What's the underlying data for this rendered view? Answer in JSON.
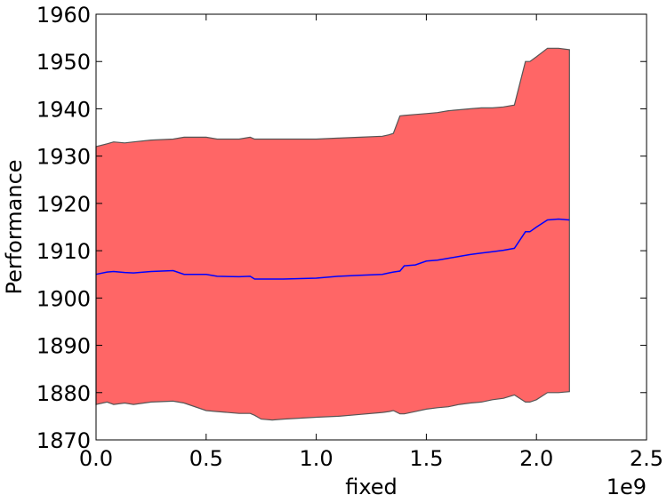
{
  "chart_data": {
    "type": "area",
    "title": "",
    "xlabel": "fixed",
    "ylabel": "Performance",
    "x_offset_label": "1e9",
    "xlim": [
      0,
      2500000000
    ],
    "ylim": [
      1870,
      1960
    ],
    "x_ticks": [
      0,
      500000000,
      1000000000,
      1500000000,
      2000000000,
      2500000000
    ],
    "x_tick_labels": [
      "0.0",
      "0.5",
      "1.0",
      "1.5",
      "2.0",
      "2.5"
    ],
    "y_ticks": [
      1870,
      1880,
      1890,
      1900,
      1910,
      1920,
      1930,
      1940,
      1950,
      1960
    ],
    "y_tick_labels": [
      "1870",
      "1880",
      "1890",
      "1900",
      "1910",
      "1920",
      "1930",
      "1940",
      "1950",
      "1960"
    ],
    "grid": false,
    "band_color": "#ff6666",
    "band_edge_color": "#555555",
    "line_color": "#0000ff",
    "x": [
      0,
      50000000,
      80000000,
      130000000,
      170000000,
      250000000,
      350000000,
      400000000,
      500000000,
      550000000,
      650000000,
      700000000,
      720000000,
      750000000,
      800000000,
      850000000,
      1000000000,
      1100000000,
      1200000000,
      1300000000,
      1330000000,
      1350000000,
      1380000000,
      1400000000,
      1450000000,
      1500000000,
      1550000000,
      1600000000,
      1650000000,
      1700000000,
      1750000000,
      1800000000,
      1850000000,
      1900000000,
      1950000000,
      1970000000,
      2000000000,
      2050000000,
      2100000000,
      2150000000
    ],
    "series": [
      {
        "values": [
          1905.0,
          1905.5,
          1905.6,
          1905.4,
          1905.3,
          1905.6,
          1905.8,
          1905.0,
          1905.0,
          1904.6,
          1904.5,
          1904.6,
          1904.0,
          1904.0,
          1904.0,
          1904.0,
          1904.2,
          1904.6,
          1904.8,
          1905.0,
          1905.3,
          1905.5,
          1905.7,
          1906.8,
          1907.0,
          1907.8,
          1908.0,
          1908.4,
          1908.8,
          1909.2,
          1909.5,
          1909.8,
          1910.1,
          1910.5,
          1914.0,
          1914.0,
          1915.0,
          1916.5,
          1916.7,
          1916.5
        ]
      },
      {
        "values": [
          1932.0,
          1932.6,
          1933.0,
          1932.8,
          1933.0,
          1933.4,
          1933.6,
          1934.0,
          1934.0,
          1933.6,
          1933.6,
          1934.0,
          1933.6,
          1933.6,
          1933.6,
          1933.6,
          1933.6,
          1933.8,
          1934.0,
          1934.2,
          1934.5,
          1934.8,
          1938.5,
          1938.6,
          1938.8,
          1939.0,
          1939.2,
          1939.6,
          1939.8,
          1940.0,
          1940.2,
          1940.2,
          1940.4,
          1940.8,
          1950.0,
          1950.0,
          1951.0,
          1952.8,
          1952.8,
          1952.5
        ]
      },
      {
        "values": [
          1877.5,
          1878.0,
          1877.5,
          1877.8,
          1877.5,
          1878.0,
          1878.2,
          1877.8,
          1876.2,
          1876.0,
          1875.6,
          1875.6,
          1875.2,
          1874.4,
          1874.2,
          1874.4,
          1874.8,
          1875.0,
          1875.4,
          1875.8,
          1876.0,
          1876.2,
          1875.5,
          1875.5,
          1876.0,
          1876.5,
          1876.8,
          1877.0,
          1877.5,
          1877.8,
          1878.0,
          1878.5,
          1878.8,
          1879.5,
          1878.0,
          1878.0,
          1878.5,
          1880.0,
          1880.0,
          1880.2
        ]
      }
    ]
  }
}
